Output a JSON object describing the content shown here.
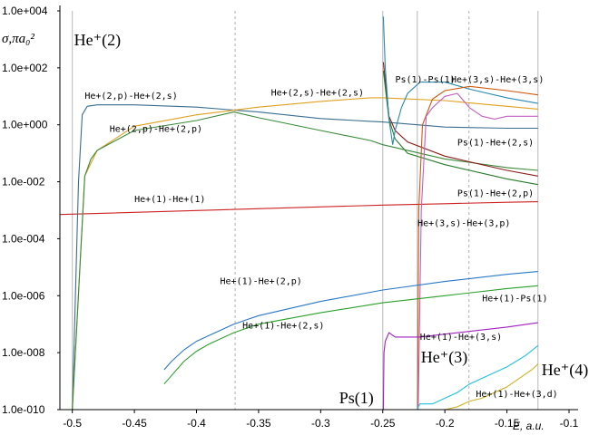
{
  "chart_data": {
    "type": "line",
    "title": "",
    "xlabel": "E, a.u.",
    "ylabel": "σ,πa₀²",
    "y_scale": "log",
    "xlim": [
      -0.51,
      -0.1
    ],
    "ylim_log10": [
      -10,
      4
    ],
    "x_ticks": [
      -0.5,
      -0.45,
      -0.4,
      -0.35,
      -0.3,
      -0.25,
      -0.2,
      -0.15,
      -0.1
    ],
    "x_tick_labels": [
      "-0.5",
      "-0.45",
      "-0.4",
      "-0.35",
      "-0.3",
      "-0.25",
      "-0.2",
      "-0.15",
      "-0.1"
    ],
    "y_ticks_log10": [
      4,
      2,
      0,
      -2,
      -4,
      -6,
      -8,
      -10
    ],
    "y_tick_labels": [
      "1.0e+004",
      "1.0e+002",
      "1.0e+000",
      "1.0e-002",
      "1.0e-004",
      "1.0e-006",
      "1.0e-008",
      "1.0e-010"
    ],
    "threshold_lines": [
      {
        "x": -0.5,
        "style": "solid",
        "label": "He⁺(2)"
      },
      {
        "x": -0.3689,
        "style": "dashed",
        "label": ""
      },
      {
        "x": -0.25,
        "style": "solid",
        "label": "Ps(1)"
      },
      {
        "x": -0.2222,
        "style": "solid",
        "label": "He⁺(3)"
      },
      {
        "x": -0.1806,
        "style": "dashed",
        "label": ""
      },
      {
        "x": -0.125,
        "style": "solid",
        "label": "He⁺(4)"
      }
    ],
    "series": [
      {
        "name": "He+(1)-He+(1)",
        "color": "#cc2222",
        "x": [
          -0.51,
          -0.25,
          -0.2,
          -0.15,
          -0.125
        ],
        "log10_y": [
          -3.15,
          -2.82,
          -2.77,
          -2.72,
          -2.7
        ]
      },
      {
        "name": "He+(2,p)-He+(2,s)",
        "color": "#3a6e8f",
        "x": [
          -0.5,
          -0.495,
          -0.492,
          -0.488,
          -0.48,
          -0.45,
          -0.4,
          -0.35,
          -0.3,
          -0.26,
          -0.25,
          -0.2,
          -0.15,
          -0.125
        ],
        "log10_y": [
          -10,
          -2,
          0.35,
          0.65,
          0.7,
          0.7,
          0.62,
          0.45,
          0.22,
          0.12,
          0.1,
          -0.08,
          -0.12,
          -0.12
        ]
      },
      {
        "name": "He+(2,s)-He+(2,s)",
        "color": "#e0a020",
        "x": [
          -0.5,
          -0.49,
          -0.48,
          -0.45,
          -0.4,
          -0.35,
          -0.3,
          -0.26,
          -0.25,
          -0.2,
          -0.15,
          -0.125
        ],
        "log10_y": [
          -10,
          -1.8,
          -0.9,
          -0.05,
          0.35,
          0.62,
          0.82,
          0.95,
          0.95,
          0.85,
          0.65,
          0.55
        ]
      },
      {
        "name": "He+(2,p)-He+(2,p)",
        "color": "#3a8a3a",
        "x": [
          -0.5,
          -0.49,
          -0.485,
          -0.48,
          -0.45,
          -0.4,
          -0.37,
          -0.35,
          -0.3,
          -0.26,
          -0.25,
          -0.2,
          -0.15,
          -0.125
        ],
        "log10_y": [
          -10,
          -1.8,
          -1.2,
          -0.9,
          -0.2,
          0.15,
          0.45,
          0.25,
          -0.2,
          -0.55,
          -0.7,
          -1.2,
          -1.5,
          -1.6
        ]
      },
      {
        "name": "Ps(1)-He+(2,s)",
        "color": "#8a1a1a",
        "x": [
          -0.2495,
          -0.245,
          -0.24,
          -0.23,
          -0.2,
          -0.15,
          -0.125
        ],
        "log10_y": [
          2.2,
          0.3,
          -0.2,
          -0.6,
          -1.1,
          -1.6,
          -1.8
        ]
      },
      {
        "name": "Ps(1)-He+(2,p)",
        "color": "#2a7a2a",
        "x": [
          -0.2495,
          -0.245,
          -0.24,
          -0.23,
          -0.2,
          -0.15,
          -0.125
        ],
        "log10_y": [
          1.9,
          0.2,
          -0.5,
          -1.0,
          -1.4,
          -1.9,
          -2.1
        ]
      },
      {
        "name": "Ps(1)-Ps(1)",
        "color": "#2a8ab0",
        "x": [
          -0.2495,
          -0.248,
          -0.245,
          -0.242,
          -0.24,
          -0.235,
          -0.23,
          -0.22,
          -0.2,
          -0.18,
          -0.15,
          -0.125
        ],
        "log10_y": [
          3.8,
          2.0,
          0.2,
          -0.7,
          -0.2,
          0.6,
          1.1,
          1.5,
          1.5,
          1.25,
          0.95,
          0.75
        ]
      },
      {
        "name": "He+(3,s)-He+(3,s)",
        "color": "#cc5a10",
        "x": [
          -0.222,
          -0.221,
          -0.218,
          -0.21,
          -0.2,
          -0.18,
          -0.15,
          -0.125
        ],
        "log10_y": [
          -10,
          -3,
          0.0,
          0.9,
          1.2,
          1.35,
          1.2,
          1.05
        ]
      },
      {
        "name": "He+(3,s)-He+(3,p)",
        "color": "#c060c0",
        "x": [
          -0.2215,
          -0.219,
          -0.215,
          -0.21,
          -0.2,
          -0.19,
          -0.18,
          -0.17,
          -0.16,
          -0.15,
          -0.125
        ],
        "log10_y": [
          -10,
          -3,
          0.3,
          0.6,
          1.0,
          1.1,
          0.6,
          0.3,
          0.2,
          0.3,
          0.3
        ]
      },
      {
        "name": "He+(1)-He+(2,p)",
        "color": "#2a78c8",
        "x": [
          -0.426,
          -0.42,
          -0.41,
          -0.4,
          -0.39,
          -0.38,
          -0.37,
          -0.36,
          -0.35,
          -0.3,
          -0.25,
          -0.2,
          -0.15,
          -0.125
        ],
        "log10_y": [
          -8.6,
          -8.3,
          -7.9,
          -7.6,
          -7.4,
          -7.2,
          -7.0,
          -6.85,
          -6.7,
          -6.2,
          -5.8,
          -5.5,
          -5.25,
          -5.15
        ]
      },
      {
        "name": "He+(1)-He+(2,s)",
        "color": "#2aa02a",
        "x": [
          -0.426,
          -0.42,
          -0.41,
          -0.4,
          -0.39,
          -0.38,
          -0.37,
          -0.36,
          -0.35,
          -0.3,
          -0.25,
          -0.2,
          -0.15,
          -0.125
        ],
        "log10_y": [
          -9.1,
          -8.8,
          -8.3,
          -7.95,
          -7.7,
          -7.5,
          -7.3,
          -7.15,
          -7.0,
          -6.6,
          -6.25,
          -6.0,
          -5.75,
          -5.65
        ]
      },
      {
        "name": "He+(1)-Ps(1)",
        "color": "#a020c0",
        "x": [
          -0.2495,
          -0.249,
          -0.248,
          -0.245,
          -0.24,
          -0.22,
          -0.2,
          -0.15,
          -0.125
        ],
        "log10_y": [
          -10,
          -8.0,
          -7.6,
          -7.3,
          -7.45,
          -7.45,
          -7.35,
          -7.1,
          -6.95
        ]
      },
      {
        "name": "He+(1)-He+(3,s)",
        "color": "#20c0e0",
        "x": [
          -0.2222,
          -0.2215,
          -0.22,
          -0.21,
          -0.2,
          -0.19,
          -0.18,
          -0.17,
          -0.15,
          -0.135,
          -0.125
        ],
        "log10_y": [
          -10,
          -9.9,
          -9.8,
          -9.8,
          -9.6,
          -9.4,
          -9.1,
          -8.9,
          -8.5,
          -8.1,
          -7.75
        ]
      },
      {
        "name": "He+(1)-He+(3,d)",
        "color": "#d0b020",
        "x": [
          -0.2,
          -0.19,
          -0.18,
          -0.17,
          -0.16,
          -0.15,
          -0.14,
          -0.13,
          -0.125
        ],
        "log10_y": [
          -10,
          -9.9,
          -9.7,
          -9.6,
          -9.4,
          -9.2,
          -8.9,
          -8.6,
          -8.4
        ]
      }
    ],
    "annotations": [
      {
        "text": "He+(2,p)-He+(2,s)",
        "x": -0.49,
        "log10_y": 0.92
      },
      {
        "text": "He+(2,s)-He+(2,s)",
        "x": -0.34,
        "log10_y": 1.03
      },
      {
        "text": "He+(2,p)-He+(2,p)",
        "x": -0.47,
        "log10_y": -0.25
      },
      {
        "text": "Ps(1)-Ps(1)",
        "x": -0.24,
        "log10_y": 1.48
      },
      {
        "text": "He+(3,s)-He+(3,s)",
        "x": -0.195,
        "log10_y": 1.48
      },
      {
        "text": "Ps(1)-He+(2,s)",
        "x": -0.19,
        "log10_y": -0.72
      },
      {
        "text": "He+(1)-He+(1)",
        "x": -0.45,
        "log10_y": -2.72
      },
      {
        "text": "Ps(1)-He+(2,p)",
        "x": -0.19,
        "log10_y": -2.5
      },
      {
        "text": "He+(3,s)-He+(3,p)",
        "x": -0.222,
        "log10_y": -3.55
      },
      {
        "text": "He+(1)-He+(2,p)",
        "x": -0.381,
        "log10_y": -5.6
      },
      {
        "text": "He+(1)-Ps(1)",
        "x": -0.17,
        "log10_y": -6.2
      },
      {
        "text": "He+(1)-He+(2,s)",
        "x": -0.363,
        "log10_y": -7.15
      },
      {
        "text": "He+(1)-He+(3,s)",
        "x": -0.22,
        "log10_y": -7.55
      },
      {
        "text": "He+(1)-He+(3,d)",
        "x": -0.175,
        "log10_y": -9.55
      }
    ]
  }
}
